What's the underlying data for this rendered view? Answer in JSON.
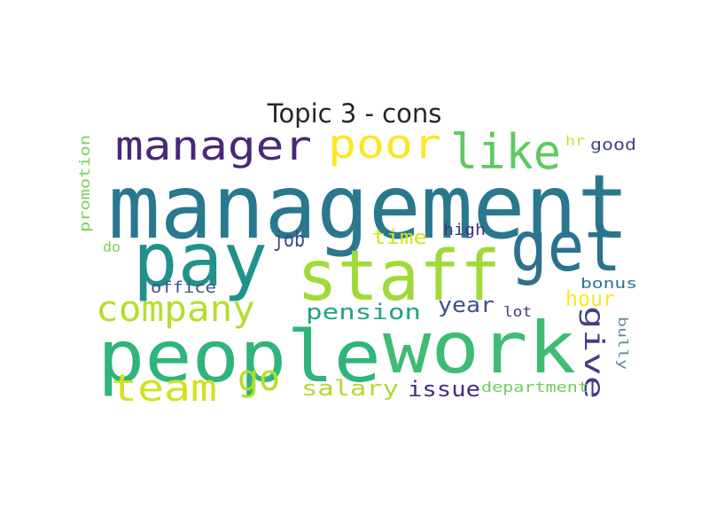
{
  "title": "Topic 3 - cons",
  "words": [
    {
      "text": "management",
      "color": "#2a788e"
    },
    {
      "text": "pay",
      "color": "#21918c"
    },
    {
      "text": "staff",
      "color": "#a0da39"
    },
    {
      "text": "people",
      "color": "#2fb47c"
    },
    {
      "text": "work",
      "color": "#3fbc73"
    },
    {
      "text": "get",
      "color": "#2c728e"
    },
    {
      "text": "manager",
      "color": "#482878"
    },
    {
      "text": "poor",
      "color": "#fde725"
    },
    {
      "text": "like",
      "color": "#5ec962"
    },
    {
      "text": "company",
      "color": "#b5de2b"
    },
    {
      "text": "team",
      "color": "#d2e21b"
    },
    {
      "text": "go",
      "color": "#b5de2b"
    },
    {
      "text": "give",
      "color": "#433e85"
    },
    {
      "text": "pension",
      "color": "#20a486"
    },
    {
      "text": "salary",
      "color": "#addc30"
    },
    {
      "text": "job",
      "color": "#404688"
    },
    {
      "text": "time",
      "color": "#d8e219"
    },
    {
      "text": "year",
      "color": "#3b528b"
    },
    {
      "text": "hour",
      "color": "#fde725"
    },
    {
      "text": "issue",
      "color": "#472f7d"
    },
    {
      "text": "high",
      "color": "#46337e"
    },
    {
      "text": "office",
      "color": "#3b528b"
    },
    {
      "text": "promotion",
      "color": "#7ad151"
    },
    {
      "text": "do",
      "color": "#84d44b"
    },
    {
      "text": "hr",
      "color": "#d0e11c"
    },
    {
      "text": "good",
      "color": "#414487"
    },
    {
      "text": "bonus",
      "color": "#2c728e"
    },
    {
      "text": "lot",
      "color": "#443983"
    },
    {
      "text": "bully",
      "color": "#5f8ea0"
    },
    {
      "text": "department",
      "color": "#6ece58"
    }
  ]
}
